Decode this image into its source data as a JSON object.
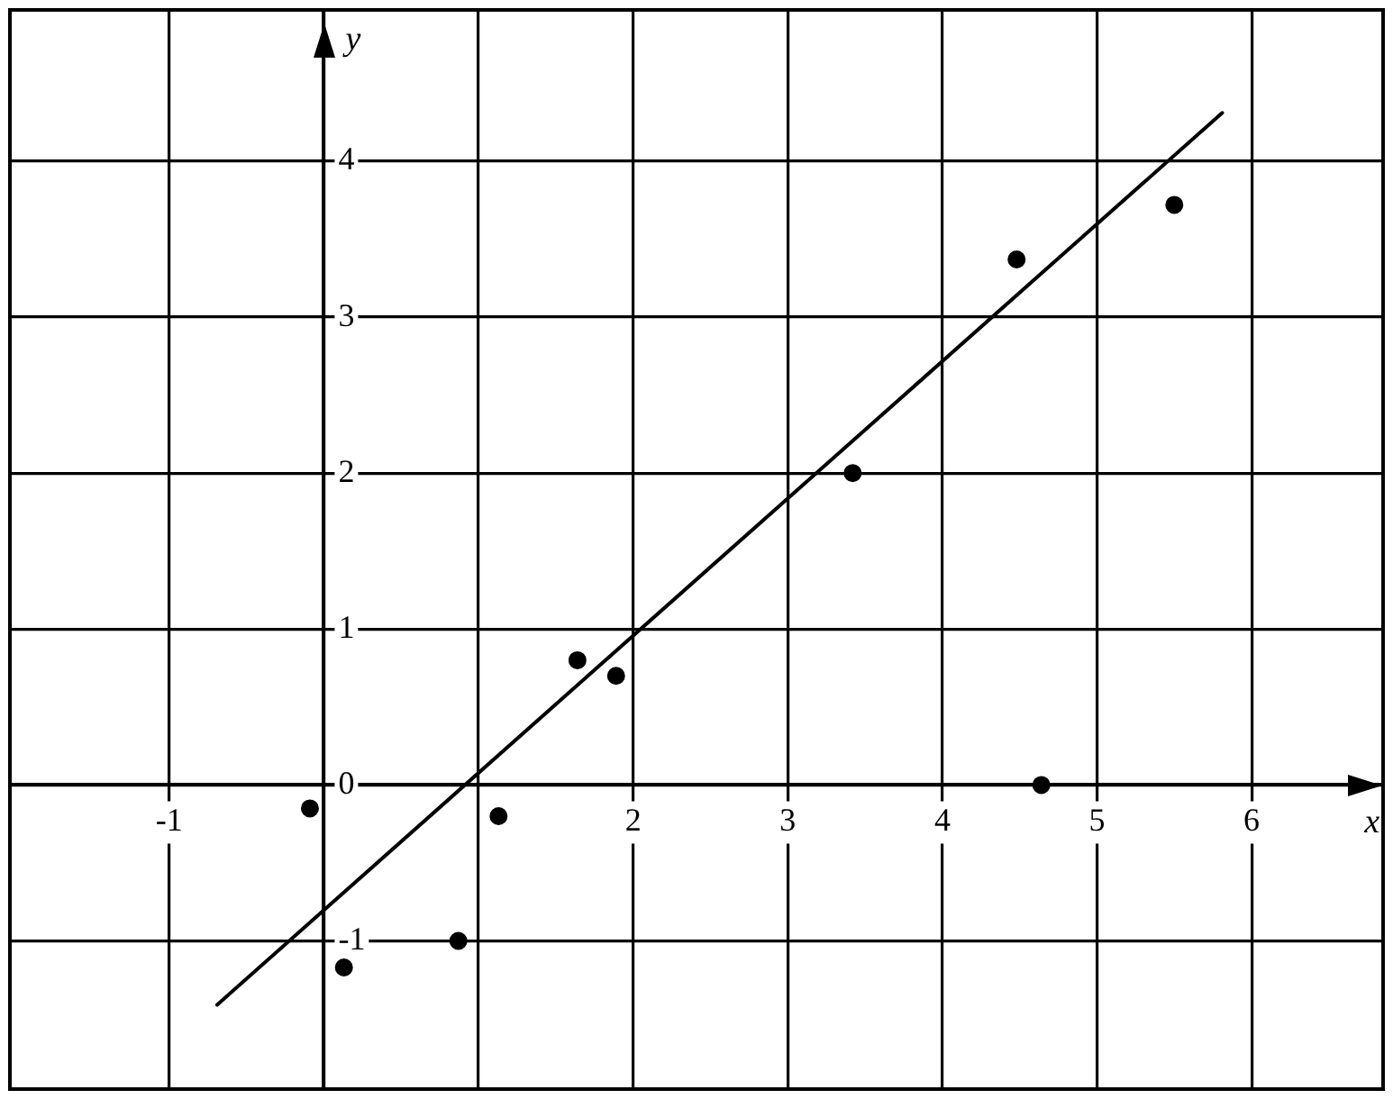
{
  "chart_data": {
    "type": "scatter",
    "xlabel": "x",
    "ylabel": "y",
    "series": [
      {
        "type": "scatter",
        "color": "#000000",
        "marker": "circle",
        "x": [
          -0.09,
          0.13,
          0.87,
          1.13,
          1.64,
          1.89,
          3.42,
          4.48,
          4.64,
          5.5
        ],
        "values": [
          -0.15,
          -1.17,
          -1,
          -0.2,
          0.8,
          0.7,
          2,
          3.37,
          0,
          3.72
        ]
      },
      {
        "type": "line",
        "color": "#000000",
        "x": [
          -0.69,
          5.81
        ],
        "values": [
          -1.41,
          4.31
        ]
      }
    ],
    "xlim": [
      -2.03,
      6.85
    ],
    "ylim": [
      -1.95,
      4.97
    ],
    "xticks": [
      -1,
      {
        "value": 0,
        "label": null
      },
      {
        "value": 1,
        "label": null
      },
      2,
      3,
      4,
      5,
      6
    ],
    "yticks": [
      -1,
      0,
      1,
      2,
      3,
      4
    ],
    "grid": true,
    "line_style": "solid"
  }
}
